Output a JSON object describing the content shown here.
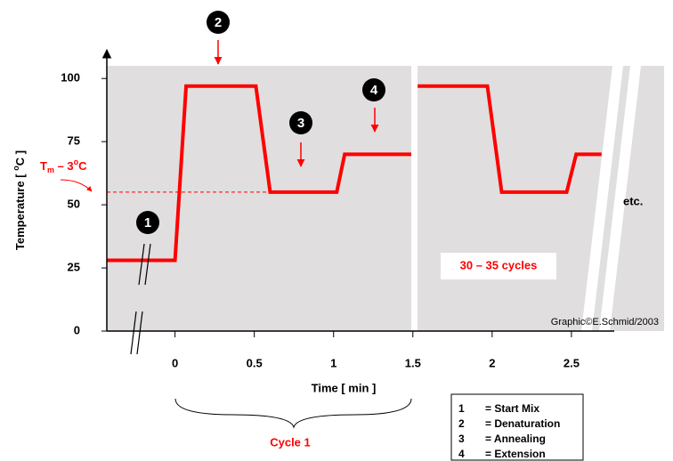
{
  "chart_data": {
    "type": "line",
    "x_label": "Time [ min ]",
    "y_label": {
      "text": "Temperature [ ",
      "sup": "o",
      "end": "C ]"
    },
    "x": [
      -0.43,
      0,
      0.07,
      0.51,
      0.6,
      1.02,
      1.07,
      1.49,
      null,
      1.53,
      1.97,
      2.06,
      2.47,
      2.53,
      2.69
    ],
    "series": [
      {
        "color": "#ff0000",
        "values": [
          28,
          28,
          97,
          97,
          55,
          55,
          70,
          70,
          null,
          97,
          97,
          55,
          55,
          70,
          70
        ]
      }
    ],
    "xlim": [
      -0.43,
      2.77
    ],
    "xticks": [
      0,
      0.5,
      1,
      1.5,
      2,
      2.5
    ],
    "ylim": [
      0,
      105
    ],
    "yticks": [
      0,
      25,
      50,
      75,
      100
    ],
    "threshold": {
      "value": 55,
      "label": {
        "base": "T",
        "sub": "m",
        "rest": " – 3",
        "sup": "o",
        "end": "C"
      }
    },
    "markers": [
      "1",
      "2",
      "3",
      "4"
    ],
    "cycles_label": "30 – 35 cycles",
    "etc_label": "etc.",
    "brace_label": "Cycle 1",
    "credit": "Graphic©E.Schmid/2003",
    "legend_items": [
      {
        "number": "1",
        "label": "= Start Mix"
      },
      {
        "number": "2",
        "label": "= Denaturation"
      },
      {
        "number": "3",
        "label": "= Annealing"
      },
      {
        "number": "4",
        "label": "= Extension"
      }
    ]
  }
}
